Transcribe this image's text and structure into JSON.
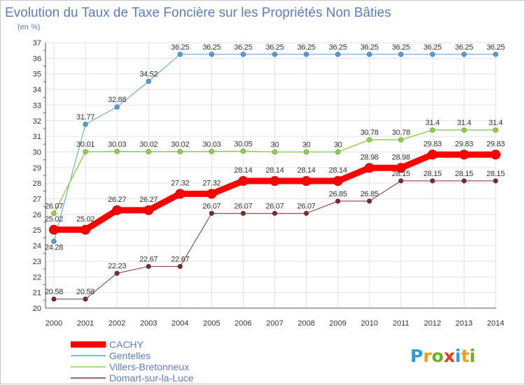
{
  "chart_data": {
    "type": "line",
    "title": "Evolution du Taux de Taxe Foncière sur les Propriétés Non Bâties",
    "subtitle": "(en %)",
    "x": [
      "2000",
      "2001",
      "2002",
      "2003",
      "2004",
      "2005",
      "2006",
      "2007",
      "2008",
      "2009",
      "2010",
      "2011",
      "2012",
      "2013",
      "2014"
    ],
    "ylim": [
      20,
      37
    ],
    "yticks": [
      "20",
      "21",
      "22",
      "23",
      "24",
      "25",
      "26",
      "27",
      "28",
      "29",
      "30",
      "31",
      "32",
      "33",
      "34",
      "35",
      "36",
      "37"
    ],
    "grid": true,
    "legend_position": "bottom-left",
    "series": [
      {
        "name": "CACHY",
        "color": "#ff0000",
        "values": [
          25.02,
          25.02,
          26.27,
          26.27,
          27.32,
          27.32,
          28.14,
          28.14,
          28.14,
          28.14,
          28.98,
          28.98,
          29.83,
          29.83,
          29.83
        ],
        "labels": [
          "25.02",
          "25.02",
          "26.27",
          "26.27",
          "27.32",
          "27.32",
          "28.14",
          "28.14",
          "28.14",
          "28.14",
          "28.98",
          "28.98",
          "29.83",
          "29.83",
          "29.83"
        ]
      },
      {
        "name": "Gentelles",
        "color": "#5b9bd5",
        "values": [
          24.28,
          31.77,
          32.88,
          34.52,
          36.25,
          36.25,
          36.25,
          36.25,
          36.25,
          36.25,
          36.25,
          36.25,
          36.25,
          36.25,
          36.25
        ],
        "labels": [
          "24.28",
          "31.77",
          "32.88",
          "34.52",
          "36.25",
          "36.25",
          "36.25",
          "36.25",
          "36.25",
          "36.25",
          "36.25",
          "36.25",
          "36.25",
          "36.25",
          "36.25"
        ]
      },
      {
        "name": "Villers-Bretonneux",
        "color": "#92d050",
        "values": [
          26.07,
          30.01,
          30.03,
          30.02,
          30.02,
          30.03,
          30.05,
          30,
          30,
          30,
          30.78,
          30.78,
          31.4,
          31.4,
          31.4
        ],
        "labels": [
          "26.07",
          "30.01",
          "30.03",
          "30.02",
          "30.02",
          "30.03",
          "30.05",
          "30",
          "30",
          "30",
          "30.78",
          "30.78",
          "31.4",
          "31.4",
          "31.4"
        ]
      },
      {
        "name": "Domart-sur-la-Luce",
        "color": "#7b3030",
        "values": [
          20.58,
          20.58,
          22.23,
          22.67,
          22.67,
          26.07,
          26.07,
          26.07,
          26.07,
          26.85,
          26.85,
          28.15,
          28.15,
          28.15,
          28.15
        ],
        "labels": [
          "20.58",
          "20.58",
          "22.23",
          "22.67",
          "22.67",
          "26.07",
          "26.07",
          "26.07",
          "26.07",
          "26.85",
          "26.85",
          "28.15",
          "28.15",
          "28.15",
          "28.15"
        ]
      }
    ]
  },
  "logo": {
    "letters": [
      "P",
      "r",
      "o",
      "x",
      "i",
      "t",
      "i"
    ],
    "colors": [
      "#2a9fd6",
      "#e8a317",
      "#6ab023",
      "#e03b24",
      "#2a9fd6",
      "#e8a317",
      "#6ab023"
    ]
  }
}
